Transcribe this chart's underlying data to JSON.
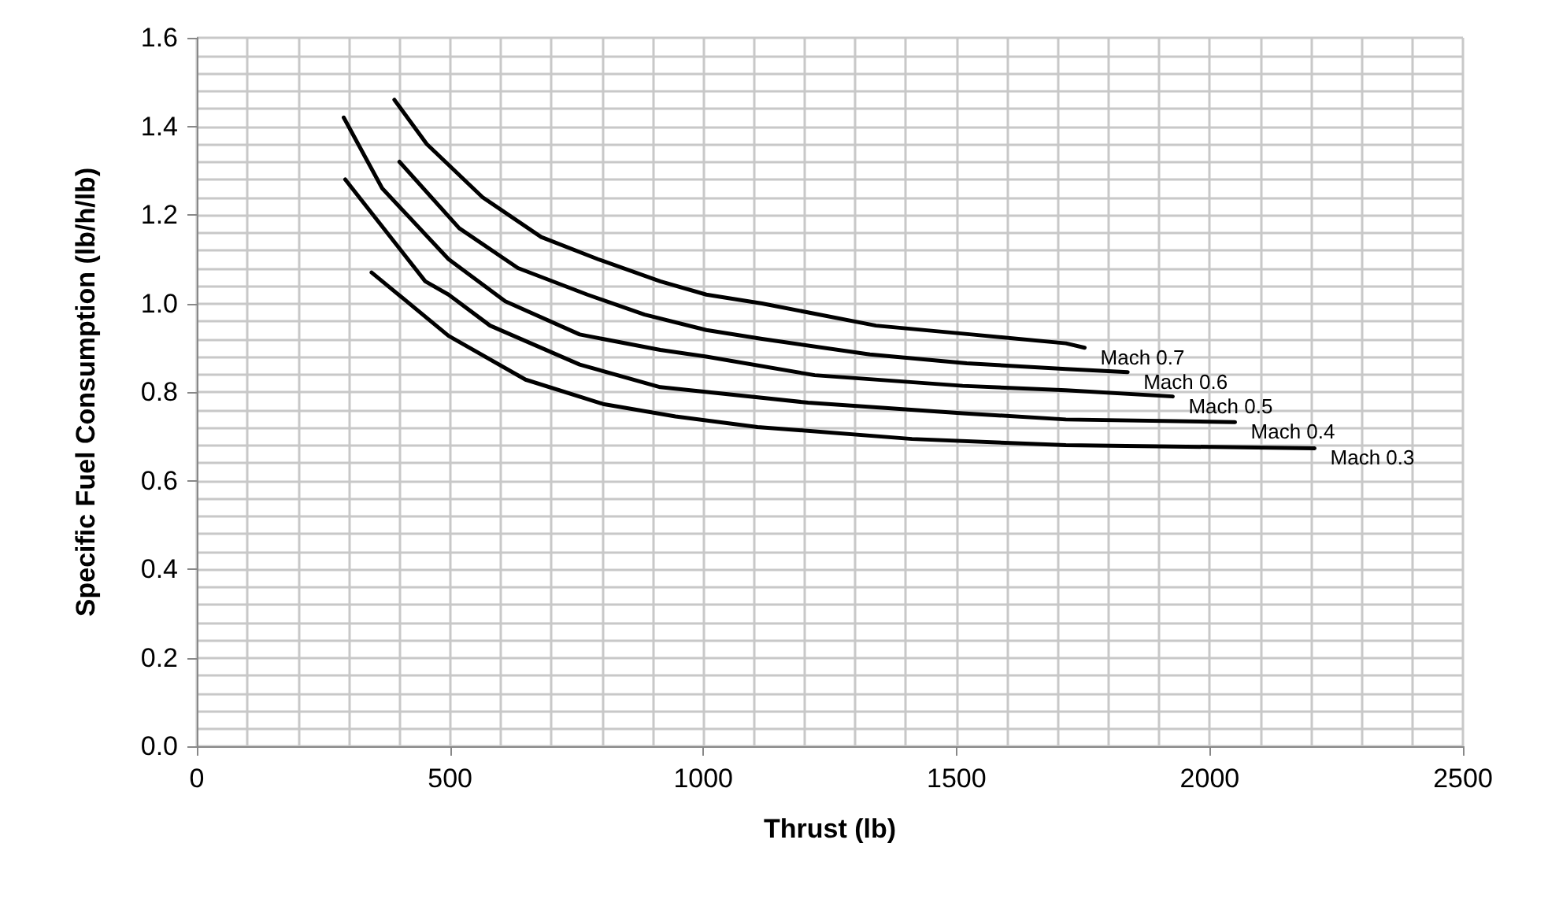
{
  "chart_data": {
    "type": "line",
    "xlabel": "Thrust (lb)",
    "ylabel": "Specific Fuel Consumption (lb/h/lb)",
    "xlim": [
      0,
      2500
    ],
    "xticks": [
      0,
      500,
      1000,
      1500,
      2000,
      2500
    ],
    "ylim": [
      0,
      1.6
    ],
    "yticks": [
      {
        "value": 0,
        "label": "0.0"
      },
      0.2,
      0.4,
      0.6,
      0.8,
      {
        "value": 1,
        "label": "1.0"
      },
      1.2,
      1.4,
      1.6
    ],
    "grid": true,
    "legend": false,
    "marker": "none",
    "line_style": "solid",
    "series": [
      {
        "name": "Mach 0.7",
        "color": "#000000",
        "x": [
          390,
          454,
          564,
          680,
          792,
          915,
          1006,
          1116,
          1341,
          1530,
          1716,
          1753
        ],
        "values": [
          1.46,
          1.36,
          1.24,
          1.15,
          1.1,
          1.05,
          1.02,
          1,
          0.95,
          0.93,
          0.91,
          0.9
        ]
      },
      {
        "name": "Mach 0.6",
        "color": "#000000",
        "x": [
          400,
          518,
          634,
          771,
          884,
          1006,
          1116,
          1329,
          1520,
          1716,
          1838
        ],
        "values": [
          1.32,
          1.17,
          1.08,
          1.02,
          0.975,
          0.94,
          0.92,
          0.885,
          0.865,
          0.852,
          0.845
        ]
      },
      {
        "name": "Mach 0.5",
        "color": "#000000",
        "x": [
          290,
          366,
          497,
          609,
          756,
          915,
          1006,
          1220,
          1512,
          1716,
          1927
        ],
        "values": [
          1.42,
          1.26,
          1.1,
          1.005,
          0.93,
          0.895,
          0.88,
          0.838,
          0.814,
          0.804,
          0.79
        ]
      },
      {
        "name": "Mach 0.4",
        "color": "#000000",
        "x": [
          293,
          451,
          497,
          579,
          756,
          915,
          1207,
          1512,
          1716,
          2050
        ],
        "values": [
          1.28,
          1.05,
          1.02,
          0.95,
          0.862,
          0.811,
          0.776,
          0.752,
          0.738,
          0.732
        ]
      },
      {
        "name": "Mach 0.3",
        "color": "#000000",
        "x": [
          345,
          497,
          649,
          802,
          945,
          1107,
          1412,
          1716,
          2207
        ],
        "values": [
          1.07,
          0.927,
          0.828,
          0.773,
          0.745,
          0.721,
          0.694,
          0.68,
          0.673
        ]
      }
    ]
  }
}
